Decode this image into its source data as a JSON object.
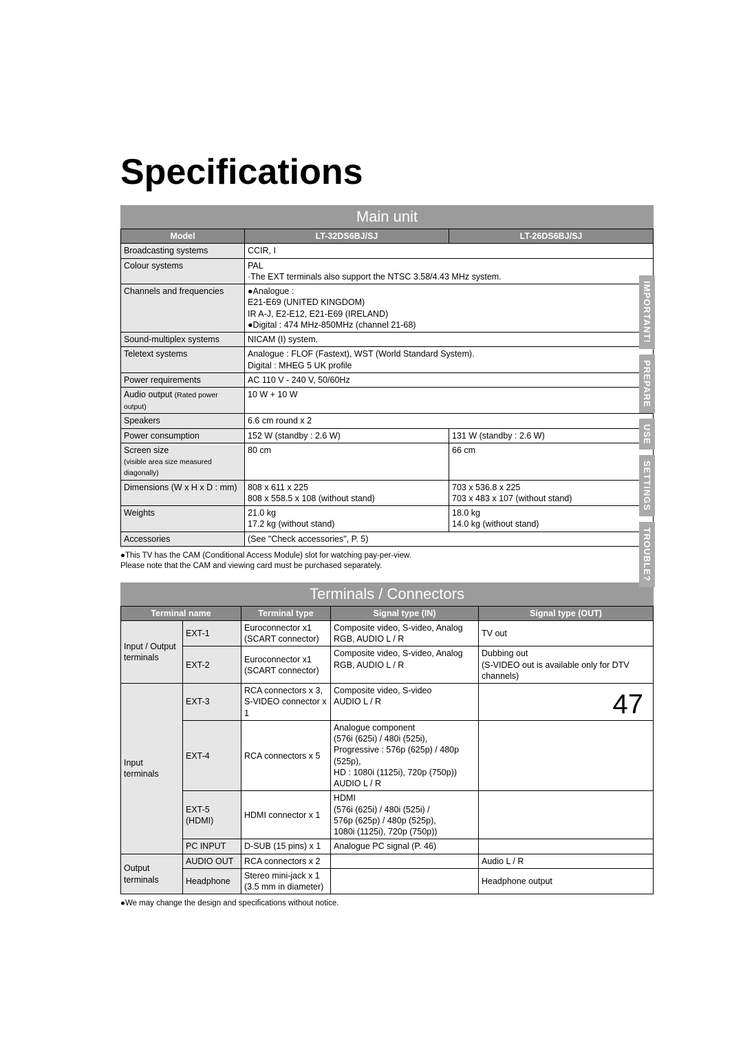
{
  "page": {
    "title": "Specifications",
    "number": "47"
  },
  "side_tabs": [
    "IMPORTANT!",
    "PREPARE",
    "USE",
    "SETTINGS",
    "TROUBLE?"
  ],
  "main_unit": {
    "heading": "Main unit",
    "cols": [
      "Model",
      "LT-32DS6BJ/SJ",
      "LT-26DS6BJ/SJ"
    ],
    "rows": [
      {
        "label": "Broadcasting systems",
        "span": "CCIR, I"
      },
      {
        "label": "Colour systems",
        "span": "PAL\n·The EXT terminals also support the NTSC 3.58/4.43 MHz system."
      },
      {
        "label": "Channels and frequencies",
        "span_lines": [
          "●Analogue :",
          "   E21-E69 (UNITED KINGDOM)",
          "   IR A-J, E2-E12, E21-E69 (IRELAND)",
          "●Digital : 474 MHz-850MHz (channel 21-68)"
        ]
      },
      {
        "label": "Sound-multiplex systems",
        "span": "NICAM (I) system."
      },
      {
        "label": "Teletext systems",
        "span": "Analogue : FLOF (Fastext), WST (World Standard System).\nDigital : MHEG 5 UK profile"
      },
      {
        "label": "Power requirements",
        "span": "AC 110 V - 240 V, 50/60Hz"
      },
      {
        "label_html": "Audio output <span style=\"font-size:10.5px\">(Rated power output)</span>",
        "span": "10 W + 10 W"
      },
      {
        "label": "Speakers",
        "span": "6.6 cm round x 2"
      },
      {
        "label": "Power consumption",
        "m1": "152 W (standby : 2.6 W)",
        "m2": "131 W (standby : 2.6 W)"
      },
      {
        "label_html": "Screen size<br><span class=\"sub-label\">(visible area size measured diagonally)</span>",
        "m1": "80 cm",
        "m2": "66 cm"
      },
      {
        "label": "Dimensions (W x H x D : mm)",
        "m1": "808 x 611 x 225\n808 x 558.5 x 108 (without stand)",
        "m2": "703 x 536.8 x 225\n703 x 483 x 107 (without stand)"
      },
      {
        "label": "Weights",
        "m1": "21.0 kg\n17.2 kg (without stand)",
        "m2": "18.0 kg\n14.0 kg (without stand)"
      },
      {
        "label": "Accessories",
        "span": "(See \"Check accessories\", P. 5)"
      }
    ],
    "note_lines": [
      "●This TV has the CAM (Conditional Access Module) slot for watching pay-per-view.",
      "   Please note that the CAM and viewing card must be purchased separately."
    ]
  },
  "terminals": {
    "heading": "Terminals / Connectors",
    "cols": [
      "Terminal name",
      "Terminal type",
      "Signal type (IN)",
      "Signal type (OUT)"
    ],
    "groups": [
      {
        "group": "Input / Output terminals",
        "rows": [
          {
            "name": "EXT-1",
            "type": "Euroconnector x1 (SCART connector)",
            "in": "Composite video, S-video, Analog RGB, AUDIO L / R",
            "out": "TV out"
          },
          {
            "name": "EXT-2",
            "type": "Euroconnector x1 (SCART connector)",
            "in": "Composite video, S-video, Analog RGB, AUDIO L / R",
            "out": "Dubbing out\n(S-VIDEO out is available only for DTV channels)"
          }
        ]
      },
      {
        "group": "Input terminals",
        "rows": [
          {
            "name": "EXT-3",
            "type": "RCA connectors x 3,\nS-VIDEO connector x 1",
            "in": "Composite video, S-video\nAUDIO L / R",
            "out": ""
          },
          {
            "name": "EXT-4",
            "type": "RCA connectors x 5",
            "in": "Analogue component\n(576i (625i) / 480i (525i),\nProgressive : 576p (625p) / 480p (525p),\nHD : 1080i (1125i), 720p (750p))\nAUDIO L / R",
            "out": ""
          },
          {
            "name": "EXT-5 (HDMI)",
            "type": "HDMI connector x 1",
            "in": "HDMI\n(576i (625i) / 480i (525i) /\n576p (625p) / 480p (525p),\n1080i (1125i), 720p (750p))",
            "out": ""
          },
          {
            "name": "PC INPUT",
            "type": "D-SUB (15 pins) x 1",
            "in": "Analogue PC signal (P. 46)",
            "out": ""
          }
        ]
      },
      {
        "group": "Output terminals",
        "rows": [
          {
            "name": "AUDIO OUT",
            "type": "RCA connectors x 2",
            "in": "",
            "out": "Audio L / R"
          },
          {
            "name": "Headphone",
            "type": "Stereo mini-jack x 1 (3.5 mm in diameter)",
            "in": "",
            "out": "Headphone output"
          }
        ]
      }
    ],
    "footnote": "●We may change the design and specifications without notice."
  }
}
